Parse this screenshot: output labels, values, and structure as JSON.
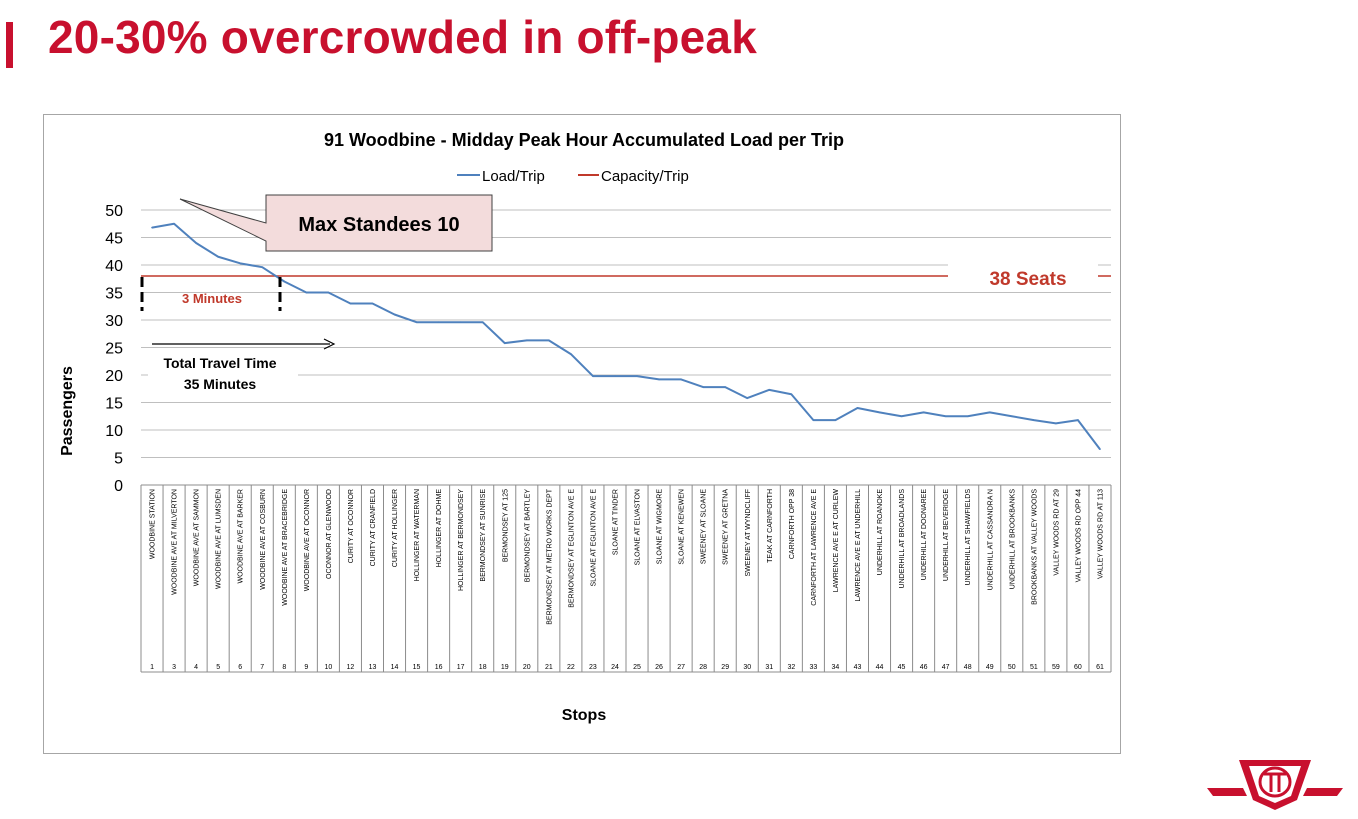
{
  "slide": {
    "title": "20-30% overcrowded in off-peak",
    "accent_color": "#c8102e"
  },
  "logo": {
    "name": "ttc-logo"
  },
  "chart_data": {
    "type": "line",
    "title": "91 Woodbine - Midday Peak Hour Accumulated Load per Trip",
    "xlabel": "Stops",
    "ylabel": "Passengers",
    "ylim": [
      0,
      50
    ],
    "yticks": [
      0,
      5,
      10,
      15,
      20,
      25,
      30,
      35,
      40,
      45,
      50
    ],
    "grid": true,
    "legend": "top",
    "categories": [
      "WOODBINE STATION",
      "WOODBINE AVE AT MILVERTON",
      "WOODBINE AVE AT SAMMON",
      "WOODBINE AVE AT LUMSDEN",
      "WOODBINE AVE AT BARKER",
      "WOODBINE AVE AT COSBURN",
      "WOODBINE AVE AT BRACEBRIDGE",
      "WOODBINE AVE AT OCONNOR",
      "OCONNOR AT GLENWOOD",
      "CURITY AT OCONNOR",
      "CURITY AT CRANFIELD",
      "CURITY AT HOLLINGER",
      "HOLLINGER AT WATERMAN",
      "HOLLINGER AT DOHME",
      "HOLLINGER AT BERMONDSEY",
      "BERMONDSEY AT SUNRISE",
      "BERMONDSEY AT 125",
      "BERMONDSEY AT BARTLEY",
      "BERMONDSEY AT METRO WORKS DEPT",
      "BERMONDSEY AT EGLINTON AVE E",
      "SLOANE AT EGLINTON AVE E",
      "SLOANE AT TINDER",
      "SLOANE AT ELVASTON",
      "SLOANE AT WIGMORE",
      "SLOANE AT KENEWEN",
      "SWEENEY AT SLOANE",
      "SWEENEY AT GRETNA",
      "SWEENEY AT WYNDCLIFF",
      "TEAK AT CARNFORTH",
      "CARNFORTH OPP 38",
      "CARNFORTH AT LAWRENCE AVE E",
      "LAWRENCE AVE E AT CURLEW",
      "LAWRENCE AVE E AT UNDERHILL",
      "UNDERHILL AT ROANOKE",
      "UNDERHILL AT BROADLANDS",
      "UNDERHILL AT DOONAREE",
      "UNDERHILL AT BEVERIDGE",
      "UNDERHILL AT SHAWFIELDS",
      "UNDERHILL AT CASSANDRA N",
      "UNDERHILL AT BROOKBANKS",
      "BROOKBANKS AT VALLEY WOODS",
      "VALLEY WOODS RD AT 29",
      "VALLEY WOODS RD OPP 44",
      "VALLEY WOODS RD AT 113"
    ],
    "stop_numbers": [
      "1",
      "3",
      "4",
      "5",
      "6",
      "7",
      "8",
      "9",
      "10",
      "12",
      "13",
      "14",
      "15",
      "16",
      "17",
      "18",
      "19",
      "20",
      "21",
      "22",
      "23",
      "24",
      "25",
      "26",
      "27",
      "28",
      "29",
      "30",
      "31",
      "32",
      "33",
      "34",
      "43",
      "44",
      "45",
      "46",
      "47",
      "48",
      "49",
      "50",
      "51",
      "59",
      "60",
      "61"
    ],
    "series": [
      {
        "name": "Load/Trip",
        "color": "#4f81bd",
        "values": [
          46.8,
          47.5,
          44,
          41.5,
          40.3,
          39.6,
          37,
          35,
          35,
          33,
          33,
          31,
          29.6,
          29.6,
          29.6,
          29.6,
          25.8,
          26.3,
          26.3,
          23.8,
          19.8,
          19.8,
          19.8,
          19.2,
          19.2,
          17.8,
          17.8,
          15.8,
          17.3,
          16.5,
          11.8,
          11.8,
          14,
          13.2,
          12.5,
          13.2,
          12.5,
          12.5,
          13.2,
          12.5,
          11.8,
          11.2,
          11.8,
          6.5
        ]
      },
      {
        "name": "Capacity/Trip",
        "color": "#c0392b",
        "value": 38
      }
    ],
    "annotations": {
      "callout": "Max Standees 10",
      "seats_label": "38 Seats",
      "minutes_label": "3 Minutes",
      "travel_line1": "Total Travel Time",
      "travel_line2": "35 Minutes"
    }
  }
}
